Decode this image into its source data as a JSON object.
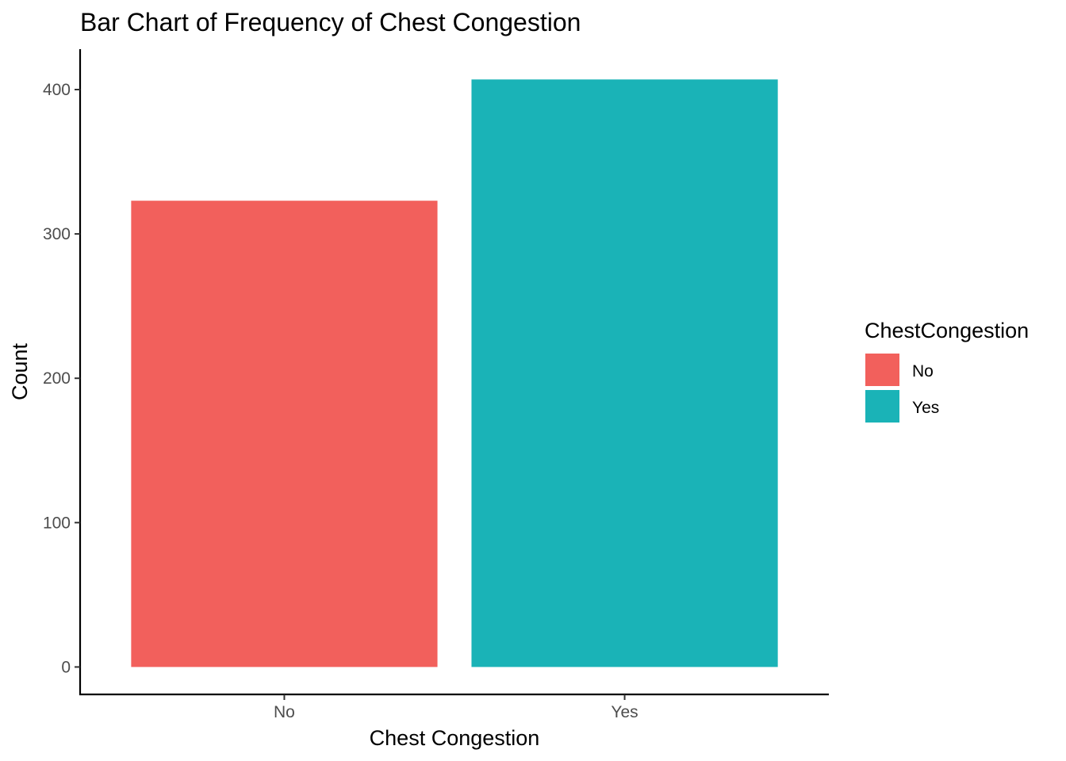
{
  "chart_data": {
    "type": "bar",
    "title": "Bar Chart of Frequency of Chest Congestion",
    "xlabel": "Chest Congestion",
    "ylabel": "Count",
    "categories": [
      "No",
      "Yes"
    ],
    "values": [
      323,
      407
    ],
    "colors": [
      "#F2605C",
      "#1AB3B7"
    ],
    "ylim": [
      -19,
      428
    ],
    "yticks": [
      0,
      100,
      200,
      300,
      400
    ],
    "grid": false,
    "legend": {
      "title": "ChestCongestion",
      "placement": "right",
      "entries": [
        "No",
        "Yes"
      ]
    }
  }
}
